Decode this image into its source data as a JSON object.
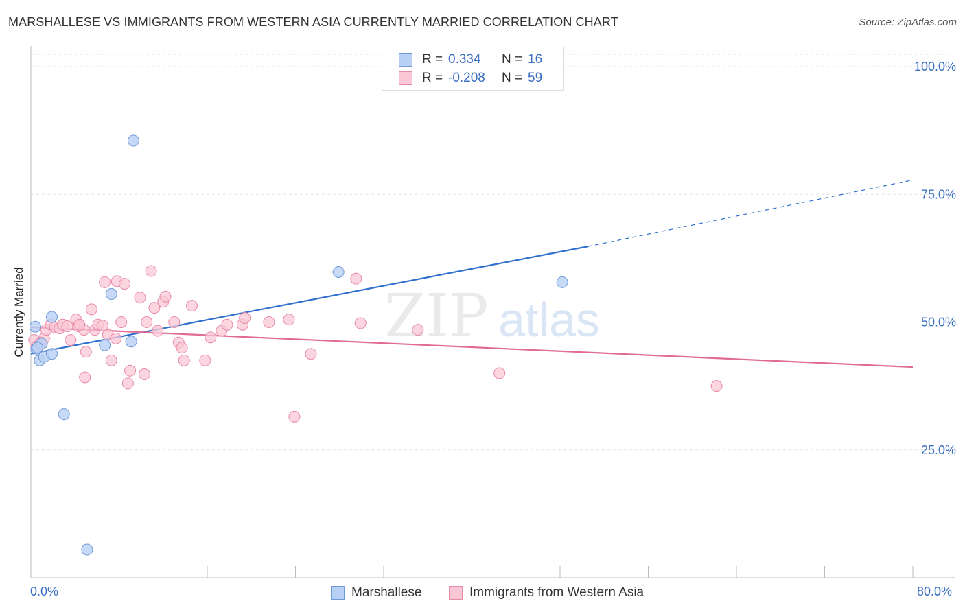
{
  "header": {
    "title": "MARSHALLESE VS IMMIGRANTS FROM WESTERN ASIA CURRENTLY MARRIED CORRELATION CHART",
    "source": "Source: ZipAtlas.com"
  },
  "legend": {
    "rows": [
      {
        "r_label": "R =",
        "r_value": "0.334",
        "n_label": "N =",
        "n_value": "16"
      },
      {
        "r_label": "R =",
        "r_value": "-0.208",
        "n_label": "N =",
        "n_value": "59"
      }
    ]
  },
  "bottom_legend": {
    "series1": "Marshallese",
    "series2": "Immigrants from Western Asia"
  },
  "watermark": {
    "zip": "ZIP",
    "atlas": "atlas"
  },
  "colors": {
    "blue_fill": "#b8d0f4",
    "blue_stroke": "#6f9ad8",
    "blue_line": "#2f6fcd",
    "pink_fill": "#f9c7d6",
    "pink_stroke": "#e88aa8",
    "pink_line": "#e06b94",
    "axis_text": "#3a6fc4",
    "grid": "#e3e3e3"
  },
  "chart_data": {
    "type": "scatter",
    "title": "MARSHALLESE VS IMMIGRANTS FROM WESTERN ASIA CURRENTLY MARRIED CORRELATION CHART",
    "xlabel": "",
    "ylabel": "Currently Married",
    "xlim": [
      0,
      80
    ],
    "ylim": [
      0,
      100
    ],
    "x_tick_labels": [
      "0.0%",
      "80.0%"
    ],
    "y_ticks": [
      25,
      50,
      75,
      100
    ],
    "y_tick_labels": [
      "25.0%",
      "50.0%",
      "75.0%",
      "100.0%"
    ],
    "grid": true,
    "legend_position": "top-center",
    "series": [
      {
        "name": "Marshallese",
        "r": 0.334,
        "n": 16,
        "points": [
          [
            0.4,
            49.1
          ],
          [
            0.5,
            44.8
          ],
          [
            0.8,
            42.5
          ],
          [
            1.0,
            45.8
          ],
          [
            1.2,
            43.2
          ],
          [
            1.9,
            51.0
          ],
          [
            1.9,
            43.8
          ],
          [
            3.0,
            32.0
          ],
          [
            5.1,
            5.5
          ],
          [
            6.7,
            45.5
          ],
          [
            7.3,
            55.5
          ],
          [
            9.1,
            46.2
          ],
          [
            9.3,
            85.5
          ],
          [
            27.9,
            59.8
          ],
          [
            48.2,
            57.8
          ],
          [
            0.6,
            45.0
          ]
        ],
        "trend": {
          "x0": 0,
          "y0": 43.8,
          "x1": 50.5,
          "y1": 64.8,
          "dash_to_x": 80,
          "dash_to_y": 77.8
        }
      },
      {
        "name": "Immigrants from Western Asia",
        "r": -0.208,
        "n": 59,
        "points": [
          [
            0.3,
            46.5
          ],
          [
            0.5,
            45.2
          ],
          [
            0.8,
            45.5
          ],
          [
            1.2,
            46.8
          ],
          [
            1.4,
            48.5
          ],
          [
            1.8,
            49.5
          ],
          [
            2.2,
            49.0
          ],
          [
            2.6,
            48.8
          ],
          [
            2.9,
            49.5
          ],
          [
            3.3,
            49.2
          ],
          [
            3.6,
            46.5
          ],
          [
            4.1,
            50.5
          ],
          [
            4.3,
            49.2
          ],
          [
            4.8,
            48.5
          ],
          [
            4.9,
            39.2
          ],
          [
            5.0,
            44.2
          ],
          [
            5.5,
            52.5
          ],
          [
            5.8,
            48.5
          ],
          [
            6.1,
            49.5
          ],
          [
            6.5,
            49.3
          ],
          [
            6.7,
            57.8
          ],
          [
            7.0,
            47.5
          ],
          [
            7.3,
            42.5
          ],
          [
            7.7,
            46.8
          ],
          [
            7.8,
            58.0
          ],
          [
            8.2,
            50.0
          ],
          [
            8.5,
            57.5
          ],
          [
            8.8,
            38.0
          ],
          [
            9.0,
            40.5
          ],
          [
            9.9,
            54.8
          ],
          [
            10.3,
            39.8
          ],
          [
            10.5,
            50.0
          ],
          [
            10.9,
            60.0
          ],
          [
            11.2,
            52.8
          ],
          [
            11.5,
            48.3
          ],
          [
            12.0,
            54.0
          ],
          [
            12.2,
            55.0
          ],
          [
            13.0,
            50.0
          ],
          [
            13.4,
            46.0
          ],
          [
            13.7,
            45.0
          ],
          [
            13.9,
            42.5
          ],
          [
            14.6,
            53.2
          ],
          [
            15.8,
            42.5
          ],
          [
            16.3,
            47.0
          ],
          [
            17.3,
            48.3
          ],
          [
            17.8,
            49.5
          ],
          [
            19.2,
            49.5
          ],
          [
            19.4,
            50.8
          ],
          [
            21.6,
            50.0
          ],
          [
            23.4,
            50.5
          ],
          [
            23.9,
            31.5
          ],
          [
            25.4,
            43.8
          ],
          [
            29.5,
            58.5
          ],
          [
            29.9,
            49.8
          ],
          [
            35.1,
            48.5
          ],
          [
            42.5,
            40.0
          ],
          [
            62.2,
            37.5
          ],
          [
            0.9,
            46.0
          ],
          [
            4.4,
            49.5
          ]
        ],
        "trend": {
          "x0": 0,
          "y0": 49.0,
          "x1": 80,
          "y1": 41.2
        }
      }
    ]
  }
}
